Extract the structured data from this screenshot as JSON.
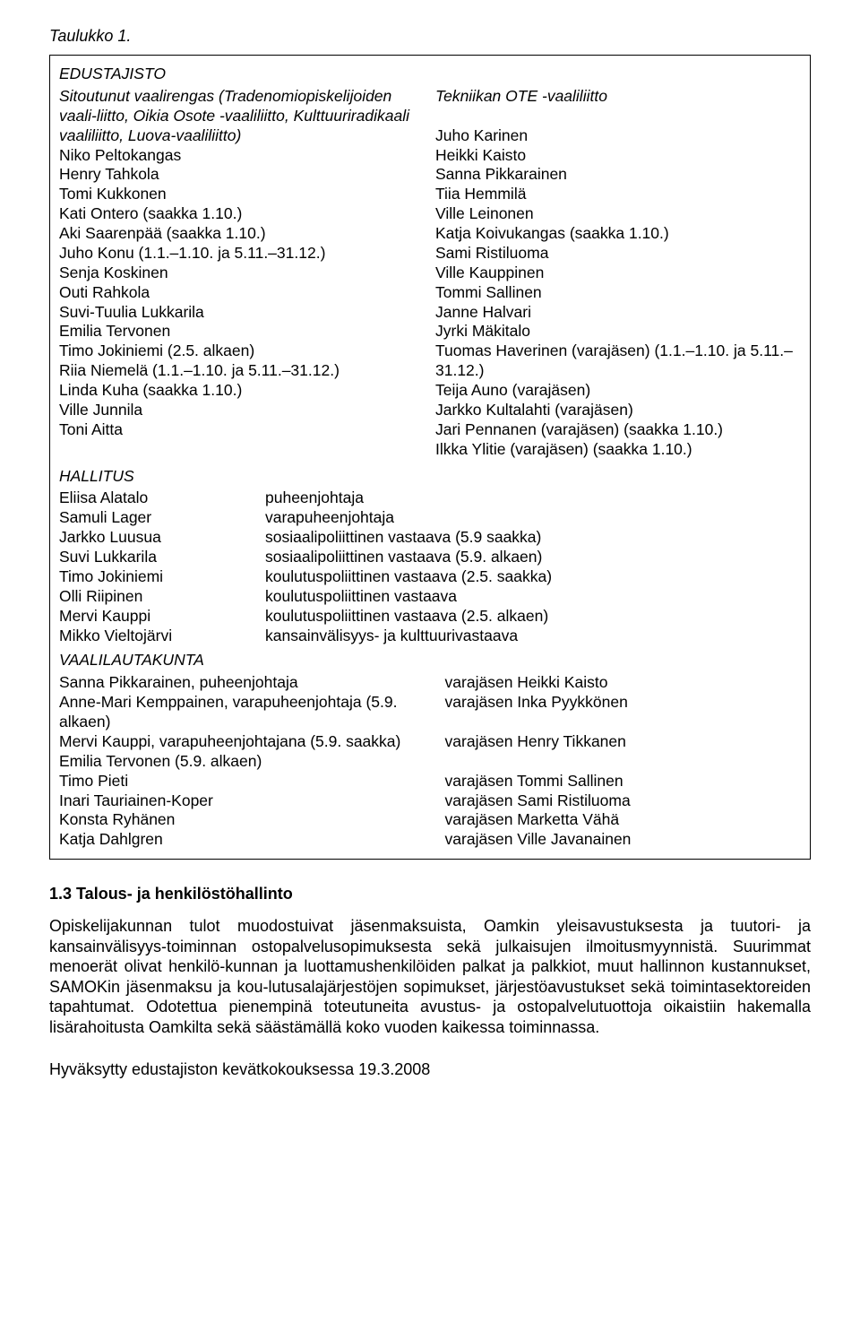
{
  "caption": "Taulukko 1.",
  "edustajisto": {
    "title": "EDUSTAJISTO",
    "left": [
      "Sitoutunut vaalirengas (Tradenomiopiskelijoiden vaali-liitto, Oikia Osote -vaaliliitto, Kulttuuriradikaali vaaliliitto, Luova-vaaliliitto)",
      "Niko Peltokangas",
      "Henry Tahkola",
      "Tomi Kukkonen",
      "Kati Ontero (saakka 1.10.)",
      "Aki Saarenpää (saakka 1.10.)",
      "Juho Konu (1.1.–1.10. ja 5.11.–31.12.)",
      "Senja Koskinen",
      "Outi Rahkola",
      "Suvi-Tuulia Lukkarila",
      "Emilia Tervonen",
      "Timo Jokiniemi (2.5. alkaen)",
      "Riia Niemelä (1.1.–1.10. ja 5.11.–31.12.)",
      "Linda Kuha (saakka 1.10.)",
      "Ville Junnila",
      "Toni Aitta"
    ],
    "right": [
      "Tekniikan OTE -vaaliliitto",
      "",
      "Juho Karinen",
      "Heikki Kaisto",
      "Sanna Pikkarainen",
      "Tiia Hemmilä",
      "Ville Leinonen",
      "Katja Koivukangas (saakka 1.10.)",
      "Sami Ristiluoma",
      "Ville Kauppinen",
      "Tommi Sallinen",
      "Janne Halvari",
      "Jyrki Mäkitalo",
      "Tuomas Haverinen (varajäsen) (1.1.–1.10. ja 5.11.–31.12.)",
      "Teija Auno (varajäsen)",
      "Jarkko Kultalahti (varajäsen)",
      "Jari Pennanen (varajäsen) (saakka 1.10.)",
      "Ilkka Ylitie (varajäsen) (saakka 1.10.)"
    ]
  },
  "hallitus": {
    "title": "HALLITUS",
    "rows": [
      {
        "name": "Eliisa Alatalo",
        "role": "puheenjohtaja"
      },
      {
        "name": "Samuli Lager",
        "role": "varapuheenjohtaja"
      },
      {
        "name": "Jarkko Luusua",
        "role": "sosiaalipoliittinen vastaava (5.9 saakka)"
      },
      {
        "name": "Suvi Lukkarila",
        "role": "sosiaalipoliittinen vastaava (5.9. alkaen)"
      },
      {
        "name": "Timo Jokiniemi",
        "role": "koulutuspoliittinen vastaava (2.5. saakka)"
      },
      {
        "name": "Olli Riipinen",
        "role": "koulutuspoliittinen vastaava"
      },
      {
        "name": "Mervi Kauppi",
        "role": "koulutuspoliittinen vastaava (2.5. alkaen)"
      },
      {
        "name": "Mikko Vieltojärvi",
        "role": "kansainvälisyys- ja kulttuurivastaava"
      }
    ]
  },
  "vaalilautakunta": {
    "title": "VAALILAUTAKUNTA",
    "rows": [
      {
        "left": "Sanna Pikkarainen, puheenjohtaja",
        "right": "varajäsen Heikki Kaisto"
      },
      {
        "left": "Anne-Mari Kemppainen, varapuheenjohtaja (5.9. alkaen)",
        "right": "varajäsen Inka Pyykkönen"
      },
      {
        "left": "Mervi Kauppi, varapuheenjohtajana (5.9. saakka)",
        "right": "varajäsen Henry Tikkanen"
      },
      {
        "left": "Emilia Tervonen (5.9. alkaen)",
        "right": ""
      },
      {
        "left": "Timo Pieti",
        "right": "varajäsen Tommi Sallinen"
      },
      {
        "left": "Inari Tauriainen-Koper",
        "right": "varajäsen Sami Ristiluoma"
      },
      {
        "left": "Konsta Ryhänen",
        "right": "varajäsen Marketta Vähä"
      },
      {
        "left": "Katja Dahlgren",
        "right": "varajäsen Ville Javanainen"
      }
    ]
  },
  "heading": "1.3 Talous- ja henkilöstöhallinto",
  "paragraph": "Opiskelijakunnan tulot muodostuivat jäsenmaksuista, Oamkin yleisavustuksesta ja tuutori- ja kansainvälisyys-toiminnan ostopalvelusopimuksesta sekä julkaisujen ilmoitusmyynnistä. Suurimmat menoerät olivat henkilö-kunnan ja luottamushenkilöiden palkat ja palkkiot, muut hallinnon kustannukset, SAMOKin jäsenmaksu ja kou-lutusalajärjestöjen sopimukset, järjestöavustukset sekä toimintasektoreiden tapahtumat. Odotettua pienempinä toteutuneita avustus- ja ostopalvelutuottoja oikaistiin hakemalla lisärahoitusta Oamkilta sekä säästämällä koko vuoden kaikessa toiminnassa.",
  "footer": "Hyväksytty edustajiston kevätkokouksessa 19.3.2008"
}
